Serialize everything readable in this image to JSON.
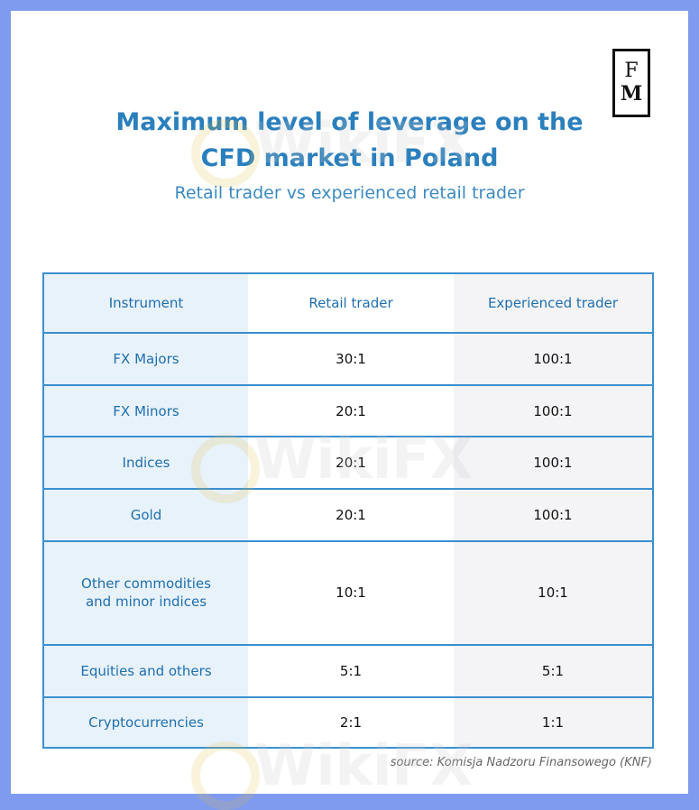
{
  "logo": {
    "line1": "F",
    "line2": "M"
  },
  "title_line1": "Maximum level of leverage on the",
  "title_line2": "CFD market in Poland",
  "subtitle": "Retail trader vs experienced retail trader",
  "table": {
    "headers": [
      "Instrument",
      "Retail trader",
      "Experienced trader"
    ],
    "rows": [
      {
        "instrument": "FX Majors",
        "retail": "30:1",
        "experienced": "100:1"
      },
      {
        "instrument": "FX Minors",
        "retail": "20:1",
        "experienced": "100:1"
      },
      {
        "instrument": "Indices",
        "retail": "20:1",
        "experienced": "100:1"
      },
      {
        "instrument": "Gold",
        "retail": "20:1",
        "experienced": "100:1"
      },
      {
        "instrument": "Other commodities\nand minor indices",
        "retail": "10:1",
        "experienced": "10:1"
      },
      {
        "instrument": "Equities and others",
        "retail": "5:1",
        "experienced": "5:1"
      },
      {
        "instrument": "Cryptocurrencies",
        "retail": "2:1",
        "experienced": "1:1"
      }
    ]
  },
  "source": "source: Komisja Nadzoru Finansowego (KNF)",
  "watermark": "WikiFX"
}
